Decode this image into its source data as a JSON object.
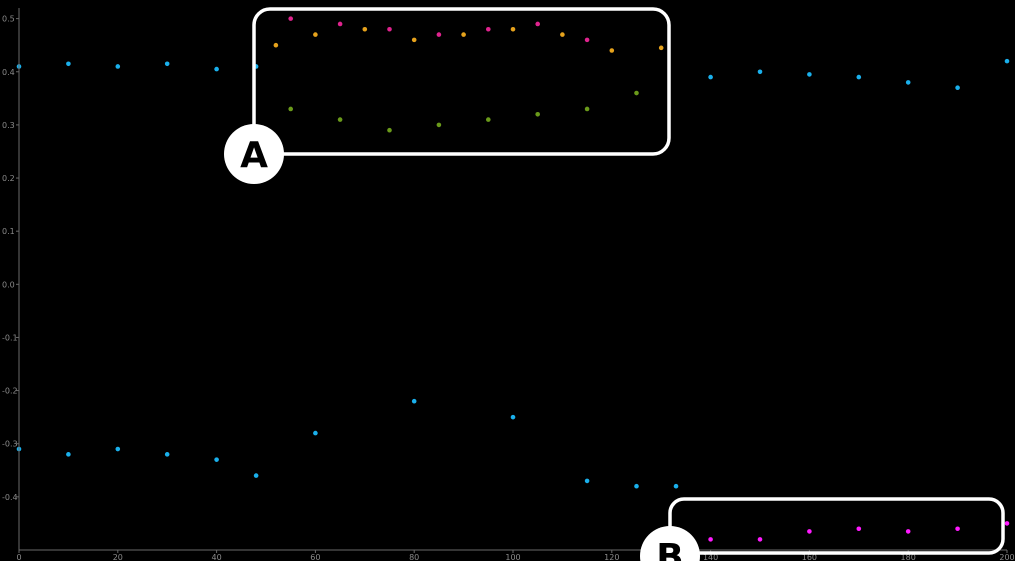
{
  "chart_data": {
    "type": "scatter",
    "title": "",
    "xlabel": "",
    "ylabel": "",
    "xlim": [
      0,
      200
    ],
    "ylim": [
      -0.5,
      0.52
    ],
    "x_ticks": [
      0,
      20,
      40,
      60,
      80,
      100,
      120,
      140,
      160,
      180,
      200
    ],
    "x_tick_labels": [
      "0",
      "20",
      "40",
      "60",
      "80",
      "100",
      "120",
      "140",
      "160",
      "180",
      "200"
    ],
    "y_ticks": [
      0.5,
      0.4,
      0.3,
      0.2,
      0.1,
      0.0,
      -0.1,
      -0.2,
      -0.3,
      -0.4
    ],
    "y_tick_labels": [
      "0.5",
      "0.4",
      "0.3",
      "0.2",
      "0.1",
      "0.0",
      "-0.1",
      "-0.2",
      "-0.3",
      "-0.4"
    ],
    "grid": false,
    "legend": "none",
    "color_scale": [
      "#00a7e1",
      "#16a7a0",
      "#4f9a1e",
      "#9c9a14",
      "#f2a21b",
      "#e6228a",
      "#ff14ff"
    ],
    "series": [
      {
        "color": "#1ab0ec",
        "points": [
          [
            0,
            0.41
          ],
          [
            10,
            0.415
          ],
          [
            20,
            0.41
          ],
          [
            30,
            0.415
          ],
          [
            40,
            0.405
          ],
          [
            48,
            0.41
          ],
          [
            140,
            0.39
          ],
          [
            150,
            0.4
          ],
          [
            160,
            0.395
          ],
          [
            170,
            0.39
          ],
          [
            180,
            0.38
          ],
          [
            190,
            0.37
          ],
          [
            200,
            0.42
          ]
        ]
      },
      {
        "color": "#1ab0ec",
        "points": [
          [
            0,
            -0.31
          ],
          [
            10,
            -0.32
          ],
          [
            20,
            -0.31
          ],
          [
            30,
            -0.32
          ],
          [
            40,
            -0.33
          ],
          [
            48,
            -0.36
          ],
          [
            60,
            -0.28
          ],
          [
            80,
            -0.22
          ],
          [
            100,
            -0.25
          ],
          [
            115,
            -0.37
          ],
          [
            125,
            -0.38
          ],
          [
            133,
            -0.38
          ]
        ]
      },
      {
        "color": "#e6a21c",
        "points": [
          [
            52,
            0.45
          ],
          [
            60,
            0.47
          ],
          [
            70,
            0.48
          ],
          [
            80,
            0.46
          ],
          [
            90,
            0.47
          ],
          [
            100,
            0.48
          ],
          [
            110,
            0.47
          ],
          [
            120,
            0.44
          ],
          [
            130,
            0.445
          ]
        ]
      },
      {
        "color": "#e0238e",
        "points": [
          [
            55,
            0.5
          ],
          [
            65,
            0.49
          ],
          [
            75,
            0.48
          ],
          [
            85,
            0.47
          ],
          [
            95,
            0.48
          ],
          [
            105,
            0.49
          ],
          [
            115,
            0.46
          ]
        ]
      },
      {
        "color": "#6a9a1a",
        "points": [
          [
            55,
            0.33
          ],
          [
            65,
            0.31
          ],
          [
            75,
            0.29
          ],
          [
            85,
            0.3
          ],
          [
            95,
            0.31
          ],
          [
            105,
            0.32
          ],
          [
            115,
            0.33
          ],
          [
            125,
            0.36
          ]
        ]
      },
      {
        "color": "#ff1aff",
        "points": [
          [
            140,
            -0.48
          ],
          [
            150,
            -0.48
          ],
          [
            160,
            -0.465
          ],
          [
            170,
            -0.46
          ],
          [
            180,
            -0.465
          ],
          [
            190,
            -0.46
          ],
          [
            200,
            -0.45
          ]
        ]
      }
    ]
  },
  "annotations": [
    {
      "label": "A"
    },
    {
      "label": "B"
    }
  ]
}
